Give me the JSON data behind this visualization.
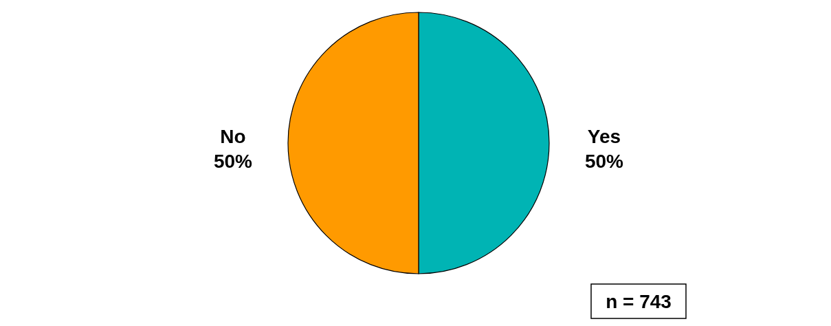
{
  "chart_data": {
    "type": "pie",
    "categories": [
      "Yes",
      "No"
    ],
    "values": [
      50,
      50
    ],
    "colors": [
      "#00b4b4",
      "#ff9a00"
    ],
    "value_labels": [
      "50%",
      "50%"
    ],
    "annotations": [
      "n = 743"
    ]
  }
}
